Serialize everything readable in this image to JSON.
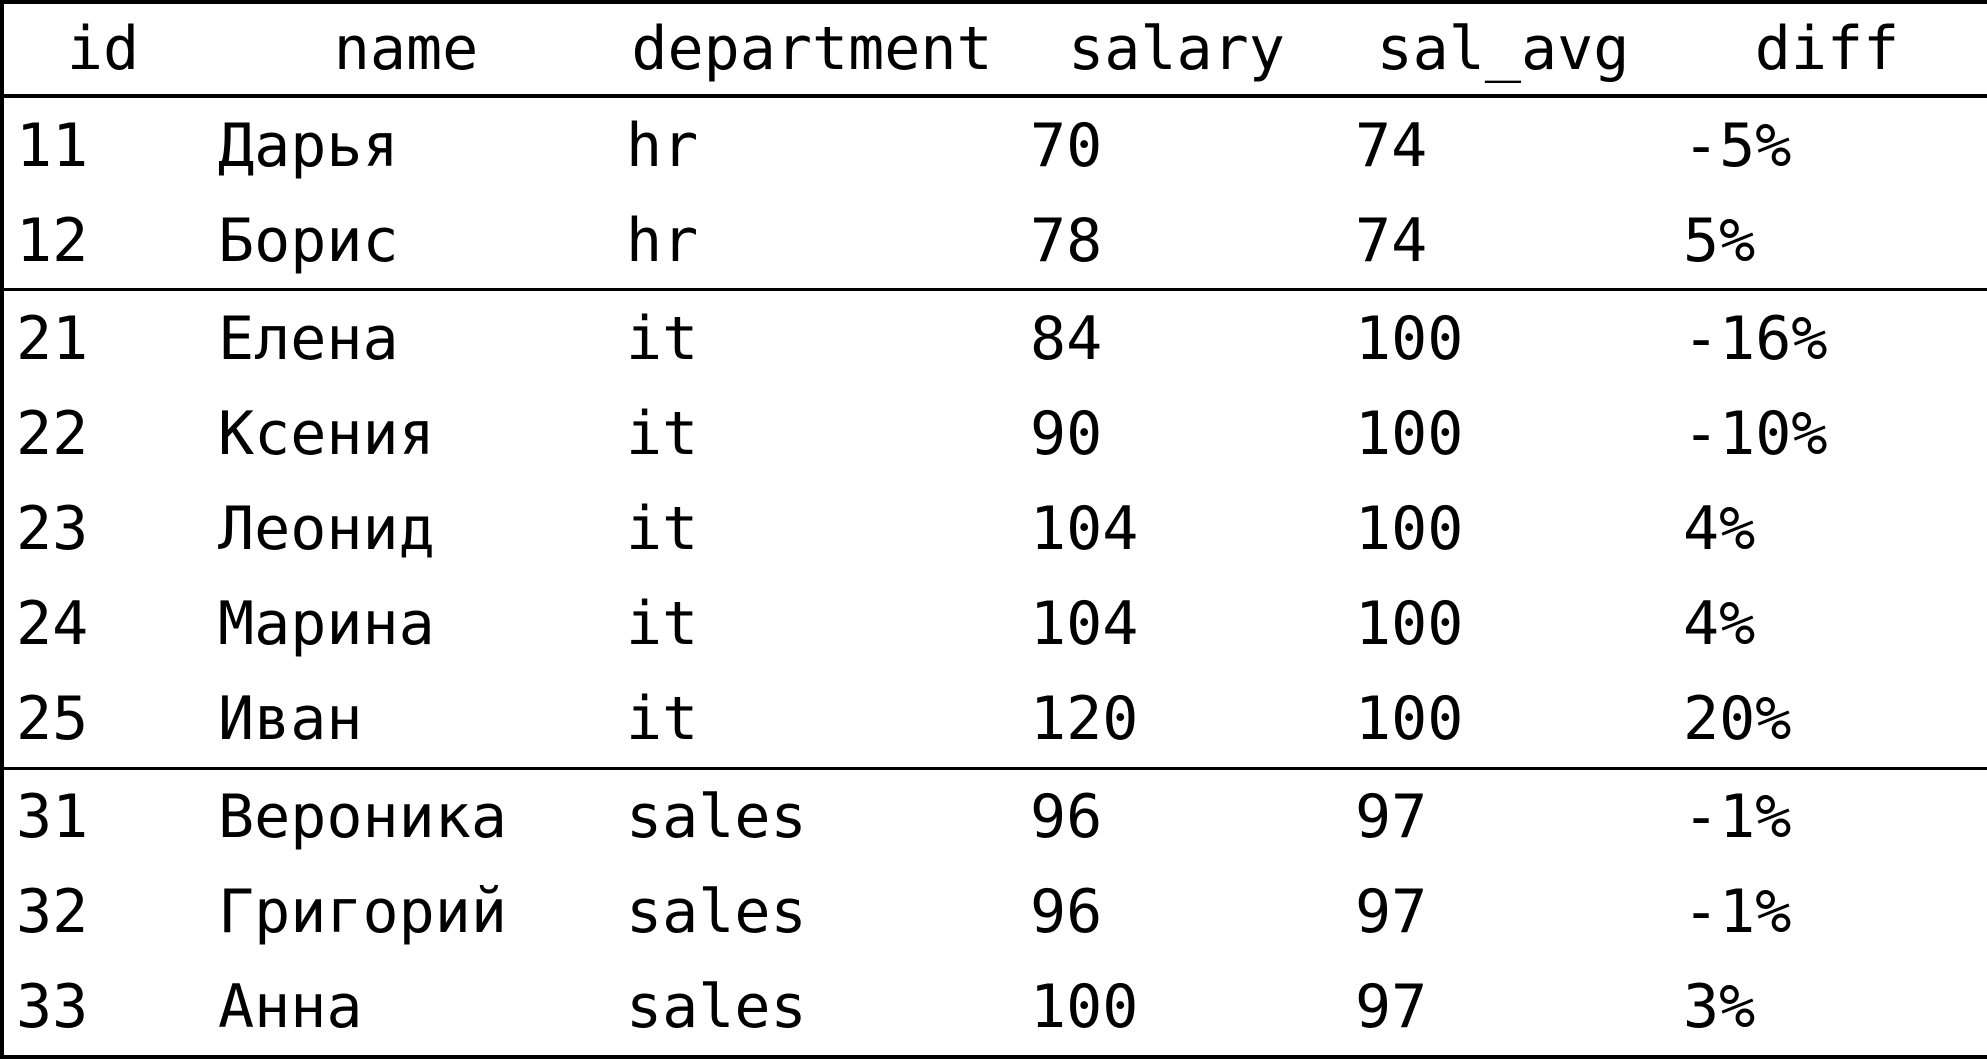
{
  "chart_data": {
    "type": "table",
    "columns": [
      "id",
      "name",
      "department",
      "salary",
      "sal_avg",
      "diff"
    ],
    "rows": [
      [
        "11",
        "Дарья",
        "hr",
        "70",
        "74",
        "-5%"
      ],
      [
        "12",
        "Борис",
        "hr",
        "78",
        "74",
        "5%"
      ],
      [
        "21",
        "Елена",
        "it",
        "84",
        "100",
        "-16%"
      ],
      [
        "22",
        "Ксения",
        "it",
        "90",
        "100",
        "-10%"
      ],
      [
        "23",
        "Леонид",
        "it",
        "104",
        "100",
        "4%"
      ],
      [
        "24",
        "Марина",
        "it",
        "104",
        "100",
        "4%"
      ],
      [
        "25",
        "Иван",
        "it",
        "120",
        "100",
        "20%"
      ],
      [
        "31",
        "Вероника",
        "sales",
        "96",
        "97",
        "-1%"
      ],
      [
        "32",
        "Григорий",
        "sales",
        "96",
        "97",
        "-1%"
      ],
      [
        "33",
        "Анна",
        "sales",
        "100",
        "97",
        "3%"
      ]
    ],
    "groups": [
      {
        "department": "hr",
        "row_indices": [
          0,
          1
        ]
      },
      {
        "department": "it",
        "row_indices": [
          2,
          3,
          4,
          5,
          6
        ]
      },
      {
        "department": "sales",
        "row_indices": [
          7,
          8,
          9
        ]
      }
    ],
    "title": "",
    "legend": null,
    "grid": "horizontal-group-separators"
  },
  "colors": {
    "border": "#000000",
    "text": "#000000",
    "background": "#ffffff"
  }
}
